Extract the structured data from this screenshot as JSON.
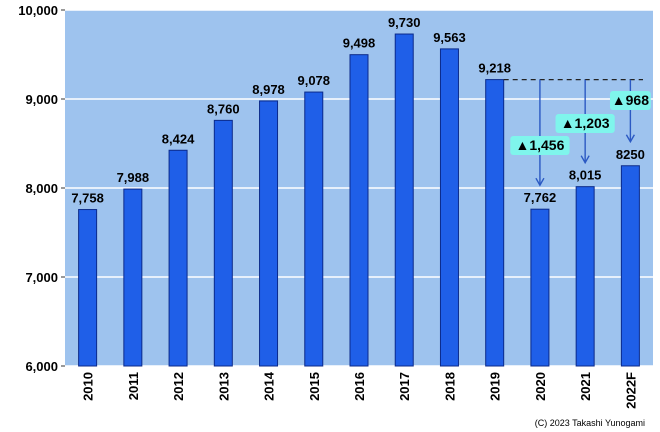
{
  "chart_data": {
    "type": "bar",
    "categories": [
      "2010",
      "2011",
      "2012",
      "2013",
      "2014",
      "2015",
      "2016",
      "2017",
      "2018",
      "2019",
      "2020",
      "2021",
      "2022F"
    ],
    "values": [
      7758,
      7988,
      8424,
      8760,
      8978,
      9078,
      9498,
      9730,
      9563,
      9218,
      7762,
      8015,
      8250
    ],
    "value_labels": [
      "7,758",
      "7,988",
      "8,424",
      "8,760",
      "8,978",
      "9,078",
      "9,498",
      "9,730",
      "9,563",
      "9,218",
      "7,762",
      "8,015",
      "8250"
    ],
    "ylim": [
      6000,
      10000
    ],
    "yticks": [
      6000,
      7000,
      8000,
      9000,
      10000
    ],
    "ytick_labels": [
      "6,000",
      "7,000",
      "8,000",
      "9,000",
      "10,000"
    ],
    "title": "",
    "xlabel": "",
    "ylabel": "",
    "grid": true,
    "reference_value": 9218,
    "annotations": [
      {
        "category": "2020",
        "label": "▲1,456",
        "value": 1456
      },
      {
        "category": "2021",
        "label": "▲1,203",
        "value": 1203
      },
      {
        "category": "2022F",
        "label": "▲968",
        "value": 968
      }
    ],
    "colors": {
      "plot_background": "#9ec3ee",
      "bar_fill": "#1f5fe8",
      "bar_stroke": "#0b2a8a",
      "annotation_highlight": "#7ff5ec",
      "arrow": "#2b59c3"
    }
  },
  "footer": {
    "copyright": "(C) 2023 Takashi Yunogami"
  }
}
